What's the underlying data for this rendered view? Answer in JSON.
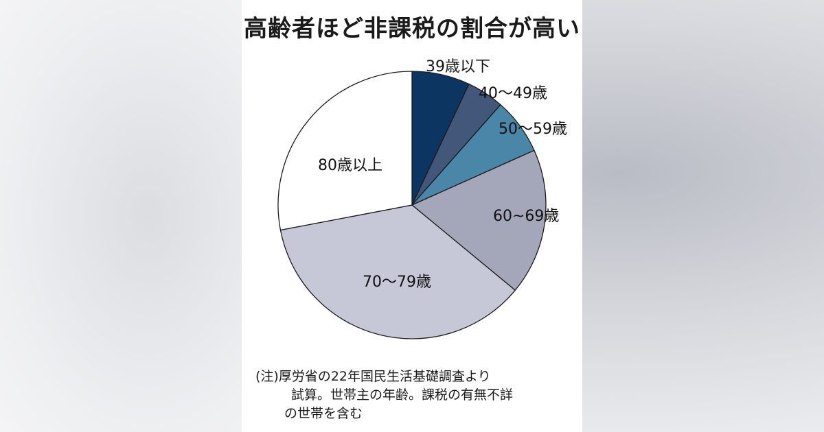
{
  "chart_data": {
    "type": "pie",
    "title": "高齢者ほど非課税の割合が高い",
    "slices": [
      {
        "label": "39歳以下",
        "value": 7,
        "color": "#0d3561"
      },
      {
        "label": "40～49歳",
        "value": 4.5,
        "color": "#43577a"
      },
      {
        "label": "50～59歳",
        "value": 6.8,
        "color": "#4a86a8"
      },
      {
        "label": "60~69歳",
        "value": 17.7,
        "color": "#a4a6ba"
      },
      {
        "label": "70～79歳",
        "value": 36,
        "color": "#c6c8d8"
      },
      {
        "label": "80歳以上",
        "value": 28,
        "color": "#ffffff"
      }
    ],
    "note": [
      "(注)厚労省の22年国民生活基礎調査より",
      "試算。世帯主の年齢。課税の有無不詳",
      "の世帯を含む"
    ]
  }
}
